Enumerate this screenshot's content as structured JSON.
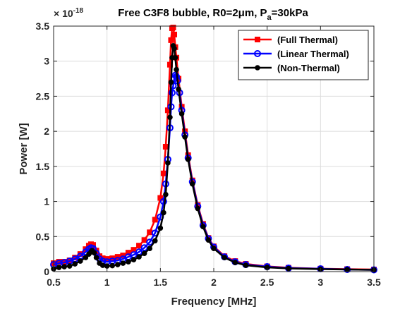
{
  "chart_data": {
    "type": "line",
    "title_parts": [
      "Free C3F8 bubble, R0=2",
      "μ",
      "m, P",
      "a",
      "=30kPa"
    ],
    "xlabel": "Frequency [MHz]",
    "ylabel": "Power [W]",
    "y_multiplier_base": "× 10",
    "y_multiplier_exp": "-18",
    "xlim": [
      0.5,
      3.5
    ],
    "ylim": [
      0,
      3.5
    ],
    "x_ticks": [
      0.5,
      1,
      1.5,
      2,
      2.5,
      3,
      3.5
    ],
    "x_tick_labels": [
      "0.5",
      "1",
      "1.5",
      "2",
      "2.5",
      "3",
      "3.5"
    ],
    "y_ticks": [
      0,
      0.5,
      1,
      1.5,
      2,
      2.5,
      3,
      3.5
    ],
    "y_tick_labels": [
      "0",
      "0.5",
      "1",
      "1.5",
      "2",
      "2.5",
      "3",
      "3.5"
    ],
    "grid": true,
    "legend_position": "top-right",
    "series": [
      {
        "name": "(Full Thermal)",
        "color": "#ff0000",
        "marker": "square",
        "points": [
          [
            0.5,
            0.12
          ],
          [
            0.55,
            0.14
          ],
          [
            0.6,
            0.14
          ],
          [
            0.65,
            0.16
          ],
          [
            0.7,
            0.2
          ],
          [
            0.75,
            0.25
          ],
          [
            0.8,
            0.32
          ],
          [
            0.83,
            0.37
          ],
          [
            0.85,
            0.39
          ],
          [
            0.87,
            0.38
          ],
          [
            0.9,
            0.3
          ],
          [
            0.93,
            0.22
          ],
          [
            0.96,
            0.19
          ],
          [
            1.0,
            0.18
          ],
          [
            1.05,
            0.19
          ],
          [
            1.1,
            0.21
          ],
          [
            1.15,
            0.23
          ],
          [
            1.2,
            0.27
          ],
          [
            1.25,
            0.31
          ],
          [
            1.3,
            0.37
          ],
          [
            1.35,
            0.45
          ],
          [
            1.4,
            0.56
          ],
          [
            1.45,
            0.74
          ],
          [
            1.5,
            1.05
          ],
          [
            1.53,
            1.4
          ],
          [
            1.55,
            1.78
          ],
          [
            1.57,
            2.3
          ],
          [
            1.59,
            2.95
          ],
          [
            1.6,
            3.3
          ],
          [
            1.61,
            3.47
          ],
          [
            1.62,
            3.48
          ],
          [
            1.63,
            3.38
          ],
          [
            1.64,
            3.2
          ],
          [
            1.65,
            3.05
          ],
          [
            1.67,
            2.75
          ],
          [
            1.7,
            2.35
          ],
          [
            1.73,
            2.0
          ],
          [
            1.76,
            1.66
          ],
          [
            1.8,
            1.3
          ],
          [
            1.85,
            0.95
          ],
          [
            1.9,
            0.68
          ],
          [
            1.95,
            0.48
          ],
          [
            2.0,
            0.36
          ],
          [
            2.1,
            0.22
          ],
          [
            2.2,
            0.15
          ],
          [
            2.3,
            0.11
          ],
          [
            2.5,
            0.075
          ],
          [
            2.7,
            0.055
          ],
          [
            3.0,
            0.042
          ],
          [
            3.25,
            0.035
          ],
          [
            3.5,
            0.03
          ]
        ]
      },
      {
        "name": "(Linear Thermal)",
        "color": "#0000ff",
        "marker": "circle",
        "points": [
          [
            0.5,
            0.1
          ],
          [
            0.55,
            0.12
          ],
          [
            0.6,
            0.13
          ],
          [
            0.65,
            0.15
          ],
          [
            0.7,
            0.18
          ],
          [
            0.75,
            0.22
          ],
          [
            0.8,
            0.28
          ],
          [
            0.83,
            0.32
          ],
          [
            0.85,
            0.34
          ],
          [
            0.87,
            0.33
          ],
          [
            0.9,
            0.26
          ],
          [
            0.93,
            0.18
          ],
          [
            0.96,
            0.15
          ],
          [
            1.0,
            0.14
          ],
          [
            1.05,
            0.15
          ],
          [
            1.1,
            0.16
          ],
          [
            1.15,
            0.18
          ],
          [
            1.2,
            0.21
          ],
          [
            1.25,
            0.24
          ],
          [
            1.3,
            0.28
          ],
          [
            1.35,
            0.34
          ],
          [
            1.4,
            0.42
          ],
          [
            1.45,
            0.55
          ],
          [
            1.5,
            0.78
          ],
          [
            1.53,
            1.0
          ],
          [
            1.55,
            1.25
          ],
          [
            1.57,
            1.6
          ],
          [
            1.59,
            2.05
          ],
          [
            1.6,
            2.35
          ],
          [
            1.61,
            2.55
          ],
          [
            1.62,
            2.65
          ],
          [
            1.63,
            2.75
          ],
          [
            1.64,
            2.8
          ],
          [
            1.65,
            2.78
          ],
          [
            1.66,
            2.72
          ],
          [
            1.68,
            2.55
          ],
          [
            1.7,
            2.3
          ],
          [
            1.73,
            1.95
          ],
          [
            1.76,
            1.62
          ],
          [
            1.8,
            1.28
          ],
          [
            1.85,
            0.93
          ],
          [
            1.9,
            0.66
          ],
          [
            1.95,
            0.47
          ],
          [
            2.0,
            0.35
          ],
          [
            2.1,
            0.21
          ],
          [
            2.2,
            0.14
          ],
          [
            2.3,
            0.1
          ],
          [
            2.5,
            0.07
          ],
          [
            2.7,
            0.05
          ],
          [
            3.0,
            0.04
          ],
          [
            3.25,
            0.03
          ],
          [
            3.5,
            0.025
          ]
        ]
      },
      {
        "name": "(Non-Thermal)",
        "color": "#000000",
        "marker": "dot",
        "points": [
          [
            0.5,
            0.04
          ],
          [
            0.55,
            0.06
          ],
          [
            0.6,
            0.07
          ],
          [
            0.65,
            0.08
          ],
          [
            0.7,
            0.11
          ],
          [
            0.75,
            0.15
          ],
          [
            0.8,
            0.2
          ],
          [
            0.83,
            0.25
          ],
          [
            0.85,
            0.28
          ],
          [
            0.86,
            0.3
          ],
          [
            0.88,
            0.27
          ],
          [
            0.9,
            0.2
          ],
          [
            0.93,
            0.12
          ],
          [
            0.96,
            0.09
          ],
          [
            1.0,
            0.08
          ],
          [
            1.05,
            0.085
          ],
          [
            1.1,
            0.1
          ],
          [
            1.15,
            0.12
          ],
          [
            1.2,
            0.14
          ],
          [
            1.25,
            0.17
          ],
          [
            1.3,
            0.21
          ],
          [
            1.35,
            0.26
          ],
          [
            1.4,
            0.33
          ],
          [
            1.45,
            0.44
          ],
          [
            1.5,
            0.62
          ],
          [
            1.53,
            0.84
          ],
          [
            1.55,
            1.1
          ],
          [
            1.57,
            1.55
          ],
          [
            1.59,
            2.2
          ],
          [
            1.6,
            2.7
          ],
          [
            1.61,
            3.05
          ],
          [
            1.62,
            3.22
          ],
          [
            1.63,
            3.18
          ],
          [
            1.64,
            3.05
          ],
          [
            1.65,
            2.88
          ],
          [
            1.67,
            2.6
          ],
          [
            1.7,
            2.25
          ],
          [
            1.73,
            1.92
          ],
          [
            1.76,
            1.6
          ],
          [
            1.8,
            1.25
          ],
          [
            1.85,
            0.9
          ],
          [
            1.9,
            0.64
          ],
          [
            1.95,
            0.45
          ],
          [
            2.0,
            0.33
          ],
          [
            2.1,
            0.2
          ],
          [
            2.2,
            0.13
          ],
          [
            2.3,
            0.09
          ],
          [
            2.5,
            0.06
          ],
          [
            2.7,
            0.045
          ],
          [
            3.0,
            0.035
          ],
          [
            3.25,
            0.03
          ],
          [
            3.5,
            0.025
          ]
        ]
      }
    ]
  }
}
